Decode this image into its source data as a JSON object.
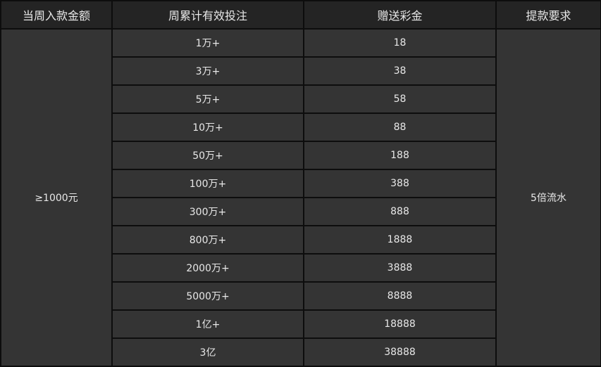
{
  "headers": [
    "当周入款金额",
    "周累计有效投注",
    "赠送彩金",
    "提款要求"
  ],
  "deposit": "≥1000元",
  "requirement": "5倍流水",
  "rows": [
    {
      "bet": "1万+",
      "bonus": "18"
    },
    {
      "bet": "3万+",
      "bonus": "38"
    },
    {
      "bet": "5万+",
      "bonus": "58"
    },
    {
      "bet": "10万+",
      "bonus": "88"
    },
    {
      "bet": "50万+",
      "bonus": "188"
    },
    {
      "bet": "100万+",
      "bonus": "388"
    },
    {
      "bet": "300万+",
      "bonus": "888"
    },
    {
      "bet": "800万+",
      "bonus": "1888"
    },
    {
      "bet": "2000万+",
      "bonus": "3888"
    },
    {
      "bet": "5000万+",
      "bonus": "8888"
    },
    {
      "bet": "1亿+",
      "bonus": "18888"
    },
    {
      "bet": "3亿",
      "bonus": "38888"
    }
  ],
  "colors": {
    "header_bg": "#242424",
    "cell_bg": "#343434",
    "border": "#0d0d0d",
    "text": "#e8e8e8"
  }
}
